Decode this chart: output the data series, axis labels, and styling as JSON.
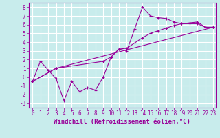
{
  "xlabel": "Windchill (Refroidissement éolien,°C)",
  "xlim": [
    -0.5,
    23.3
  ],
  "ylim": [
    -3.5,
    8.5
  ],
  "xticks": [
    0,
    1,
    2,
    3,
    4,
    5,
    6,
    7,
    8,
    9,
    10,
    11,
    12,
    13,
    14,
    15,
    16,
    17,
    18,
    19,
    20,
    21,
    22,
    23
  ],
  "yticks": [
    -3,
    -2,
    -1,
    0,
    1,
    2,
    3,
    4,
    5,
    6,
    7,
    8
  ],
  "bg_color": "#c8ecec",
  "line_color": "#990099",
  "grid_color": "#ffffff",
  "line1_x": [
    0,
    1,
    2,
    3,
    4,
    5,
    6,
    7,
    8,
    9,
    10,
    11,
    12,
    13,
    14,
    15,
    16,
    17,
    18,
    19,
    20,
    21,
    22,
    23
  ],
  "line1_y": [
    -0.5,
    1.8,
    0.8,
    -0.2,
    -2.7,
    -0.5,
    -1.7,
    -1.2,
    -1.5,
    0.0,
    2.3,
    3.2,
    3.0,
    5.5,
    8.0,
    7.0,
    6.8,
    6.7,
    6.3,
    6.1,
    6.1,
    6.1,
    5.7,
    5.7
  ],
  "line2_x": [
    0,
    3,
    9,
    10,
    11,
    12,
    13,
    14,
    15,
    16,
    17,
    18,
    19,
    20,
    21,
    22,
    23
  ],
  "line2_y": [
    -0.5,
    1.0,
    1.8,
    2.3,
    3.2,
    3.3,
    3.9,
    4.5,
    5.0,
    5.3,
    5.6,
    5.9,
    6.1,
    6.2,
    6.3,
    5.7,
    5.7
  ],
  "line3_x": [
    0,
    3,
    23
  ],
  "line3_y": [
    -0.5,
    1.0,
    5.7
  ],
  "font_family": "monospace",
  "tick_fontsize": 5.5,
  "label_fontsize": 6.5
}
